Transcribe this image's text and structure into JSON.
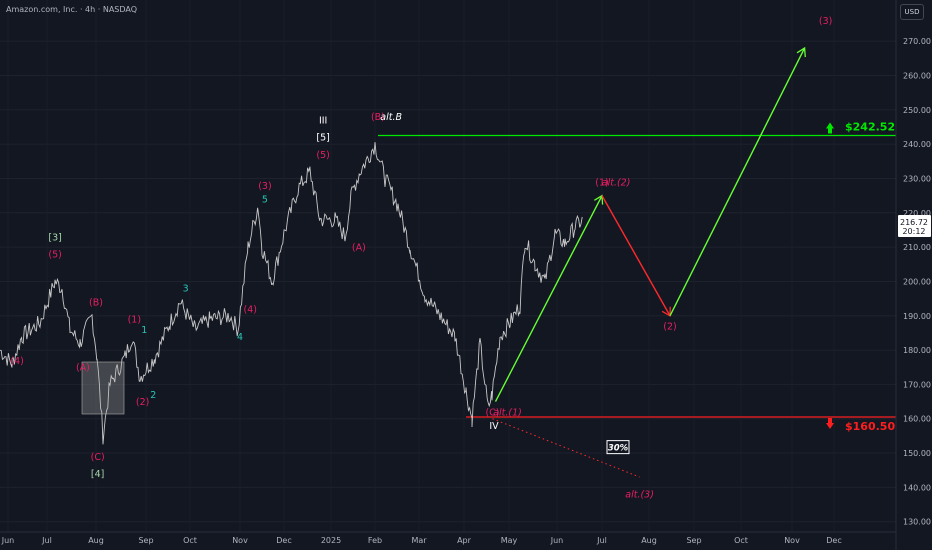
{
  "header": {
    "symbol_line": "Amazon.com, Inc. · 4h · NASDAQ",
    "currency": "USD"
  },
  "price_tag": {
    "price": "216.72",
    "countdown": "20:12"
  },
  "levels": {
    "upper": {
      "value": 242.52,
      "label": "$242.52",
      "color": "#00e700"
    },
    "lower": {
      "value": 160.5,
      "label": "$160.50",
      "color": "#ff1e1e"
    }
  },
  "probability_badge": "30%",
  "colors": {
    "bg": "#131722",
    "price": "#c8c8c8",
    "impulse_up": "#66ff33",
    "correction": "#ff2a2a",
    "wave_pink": "#e91e63",
    "wave_teal": "#26c6b4",
    "wave_green": "#a5d6a7",
    "wave_white": "#ffffff"
  },
  "chart_data": {
    "type": "line",
    "title": "",
    "y_axis": {
      "ticks": [
        130,
        140,
        150,
        160,
        170,
        180,
        190,
        200,
        210,
        220,
        230,
        240,
        250,
        260,
        270
      ],
      "min": 127,
      "max": 282,
      "position": "right"
    },
    "x_axis": {
      "labels": [
        "Jun",
        "Jul",
        "Aug",
        "Sep",
        "Oct",
        "Nov",
        "Dec",
        "2025",
        "Feb",
        "Mar",
        "Apr",
        "May",
        "Jun",
        "Jul",
        "Aug",
        "Sep",
        "Oct",
        "Nov",
        "Dec"
      ]
    },
    "series": [
      {
        "type": "price_path",
        "values": [
          [
            0,
            180
          ],
          [
            12,
            176
          ],
          [
            22,
            184
          ],
          [
            40,
            188
          ],
          [
            55,
            200
          ],
          [
            62,
            198
          ],
          [
            70,
            186
          ],
          [
            80,
            182
          ],
          [
            92,
            190
          ],
          [
            97,
            178
          ],
          [
            103,
            155
          ],
          [
            110,
            170
          ],
          [
            125,
            178
          ],
          [
            132,
            184
          ],
          [
            140,
            172
          ],
          [
            155,
            178
          ],
          [
            170,
            188
          ],
          [
            180,
            194
          ],
          [
            195,
            186
          ],
          [
            210,
            189
          ],
          [
            230,
            190
          ],
          [
            238,
            186
          ],
          [
            248,
            210
          ],
          [
            258,
            222
          ],
          [
            262,
            210
          ],
          [
            272,
            200
          ],
          [
            285,
            215
          ],
          [
            298,
            227
          ],
          [
            310,
            232
          ],
          [
            320,
            218
          ],
          [
            335,
            218
          ],
          [
            345,
            213
          ],
          [
            352,
            226
          ],
          [
            360,
            232
          ],
          [
            368,
            236
          ],
          [
            375,
            240
          ],
          [
            385,
            230
          ],
          [
            398,
            222
          ],
          [
            410,
            210
          ],
          [
            425,
            196
          ],
          [
            440,
            190
          ],
          [
            455,
            184
          ],
          [
            466,
            168
          ],
          [
            472,
            160
          ],
          [
            480,
            182
          ],
          [
            488,
            163
          ],
          [
            492,
            167
          ],
          [
            500,
            184
          ],
          [
            510,
            188
          ],
          [
            520,
            193
          ],
          [
            525,
            212
          ],
          [
            535,
            205
          ],
          [
            545,
            200
          ],
          [
            555,
            214
          ],
          [
            565,
            211
          ],
          [
            575,
            216
          ],
          [
            583,
            218
          ]
        ]
      }
    ],
    "projections": [
      {
        "kind": "impulse",
        "color": "#66ff33",
        "points": [
          [
            "Apr 22",
            165
          ],
          [
            "Jul 1",
            225
          ]
        ]
      },
      {
        "kind": "correction",
        "color": "#ff2a2a",
        "points": [
          [
            "Jul 1",
            225
          ],
          [
            "Aug 15",
            190
          ]
        ]
      },
      {
        "kind": "impulse",
        "color": "#66ff33",
        "points": [
          [
            "Aug 15",
            190
          ],
          [
            "Nov 10",
            268
          ]
        ]
      },
      {
        "kind": "alt",
        "color": "#ff2a2a",
        "style": "dotted",
        "points": [
          [
            "Apr 20",
            160
          ],
          [
            "Jul 25",
            143
          ]
        ]
      }
    ],
    "wave_labels": [
      {
        "text": "(4)",
        "color": "pink",
        "x": "Jun 8",
        "y": 176
      },
      {
        "text": "(A)",
        "color": "pink",
        "x": "Jul 23",
        "y": 174
      },
      {
        "text": "(B)",
        "color": "pink",
        "x": "Aug 1",
        "y": 193
      },
      {
        "text": "(C)",
        "color": "pink",
        "x": "Aug 2",
        "y": 148
      },
      {
        "text": "[4]",
        "color": "green",
        "x": "Aug 2",
        "y": 143
      },
      {
        "text": "[3]",
        "color": "green",
        "x": "Jul 6",
        "y": 212
      },
      {
        "text": "(5)",
        "color": "pink",
        "x": "Jul 6",
        "y": 207
      },
      {
        "text": "(1)",
        "color": "pink",
        "x": "Aug 24",
        "y": 188
      },
      {
        "text": "1",
        "color": "teal",
        "x": "Aug 30",
        "y": 185
      },
      {
        "text": "(2)",
        "color": "pink",
        "x": "Aug 29",
        "y": 164
      },
      {
        "text": "2",
        "color": "teal",
        "x": "Sep 6",
        "y": 166
      },
      {
        "text": "3",
        "color": "teal",
        "x": "Sep 28",
        "y": 197
      },
      {
        "text": "4",
        "color": "teal",
        "x": "Oct 31",
        "y": 183
      },
      {
        "text": "(4)",
        "color": "pink",
        "x": "Nov 8",
        "y": 191
      },
      {
        "text": "(3)",
        "color": "pink",
        "x": "Nov 18",
        "y": 227
      },
      {
        "text": "5",
        "color": "teal",
        "x": "Nov 18",
        "y": 223
      },
      {
        "text": "III",
        "color": "white",
        "x": "Dec 26",
        "y": 246
      },
      {
        "text": "[5]",
        "color": "white",
        "x": "Dec 26",
        "y": 241
      },
      {
        "text": "(5)",
        "color": "pink",
        "x": "Dec 26",
        "y": 236
      },
      {
        "text": "(A)",
        "color": "pink",
        "x": "Jan 20",
        "y": 209
      },
      {
        "text": "(B)",
        "color": "pink",
        "x": "Feb 3",
        "y": 247
      },
      {
        "text": "alt.B",
        "color": "white",
        "x": "Feb 12",
        "y": 247
      },
      {
        "text": "(C)",
        "color": "pink",
        "x": "Apr 20",
        "y": 161
      },
      {
        "text": "alt.(1)",
        "color": "pink",
        "x": "Apr 30",
        "y": 161
      },
      {
        "text": "IV",
        "color": "white",
        "x": "Apr 21",
        "y": 157
      },
      {
        "text": "(1)",
        "color": "pink",
        "x": "Jul 1",
        "y": 228
      },
      {
        "text": "alt.(2)",
        "color": "pink",
        "x": "Jul 10",
        "y": 228
      },
      {
        "text": "(2)",
        "color": "pink",
        "x": "Aug 15",
        "y": 186
      },
      {
        "text": "(3)",
        "color": "pink",
        "x": "Nov 25",
        "y": 275
      },
      {
        "text": "alt.(3)",
        "color": "pink",
        "x": "Jul 25",
        "y": 137
      }
    ]
  }
}
